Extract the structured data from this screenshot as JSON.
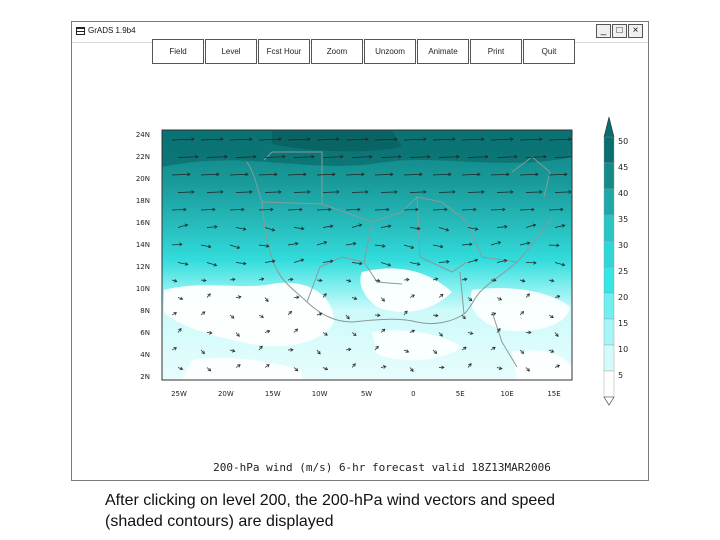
{
  "window": {
    "title": "GrADS 1.9b4"
  },
  "menu": [
    "Field",
    "Level",
    "Fcst Hour",
    "Zoom",
    "Unzoom",
    "Animate",
    "Print",
    "Quit"
  ],
  "plot": {
    "title": "200-hPa wind (m/s) 6-hr forecast valid 18Z13MAR2006",
    "lat_labels": [
      "24N",
      "22N",
      "20N",
      "18N",
      "16N",
      "14N",
      "12N",
      "10N",
      "8N",
      "6N",
      "4N",
      "2N"
    ],
    "lon_labels": [
      "25W",
      "20W",
      "15W",
      "10W",
      "5W",
      "0",
      "5E",
      "10E",
      "15E"
    ],
    "colorbar_labels": [
      "50",
      "45",
      "40",
      "35",
      "30",
      "25",
      "20",
      "15",
      "10",
      "5"
    ],
    "colors": [
      "#0a6e6e",
      "#148a8a",
      "#1ea8a8",
      "#29c4c4",
      "#2fd8d8",
      "#36e6e6",
      "#6ef0f0",
      "#a6f6f6",
      "#d4fbfb",
      "#ffffff"
    ]
  },
  "caption": {
    "line1": "After clicking on level 200, the 200-hPa wind vectors and speed",
    "line2": "(shaded contours) are displayed"
  }
}
